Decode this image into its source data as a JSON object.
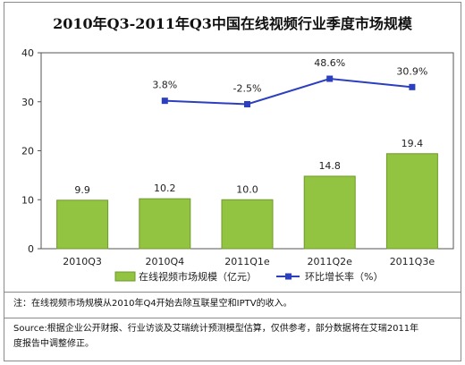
{
  "chart_data": {
    "type": "bar+line",
    "title": "2010年Q3-2011年Q3中国在线视频行业季度市场规模",
    "categories": [
      "2010Q3",
      "2010Q4",
      "2011Q1e",
      "2011Q2e",
      "2011Q3e"
    ],
    "bar_series": {
      "name": "在线视频市场规模（亿元）",
      "values": [
        9.9,
        10.2,
        10.0,
        14.8,
        19.4
      ],
      "labels": [
        "9.9",
        "10.2",
        "10.0",
        "14.8",
        "19.4"
      ],
      "color": "#92c341"
    },
    "line_series": {
      "name": "环比增长率（%）",
      "values": [
        null,
        3.8,
        -2.5,
        48.6,
        30.9
      ],
      "labels": [
        "",
        "3.8%",
        "-2.5%",
        "48.6%",
        "30.9%"
      ],
      "plot_positions": [
        null,
        30.2,
        29.5,
        34.7,
        33.0
      ],
      "color": "#2b3fbf"
    },
    "y_ticks": [
      "0",
      "10",
      "20",
      "30",
      "40"
    ],
    "ylim": [
      0,
      40
    ],
    "legend_position": "bottom",
    "grid": false
  },
  "notes": {
    "note1": "注：在线视频市场规模从2010年Q4开始去除互联星空和IPTV的收入。",
    "source_line1": "Source:根据企业公开财报、行业访谈及艾瑞统计预测模型估算，仅供参考，部分数据将在艾瑞2011年",
    "source_line2": "度报告中调整修正。"
  }
}
